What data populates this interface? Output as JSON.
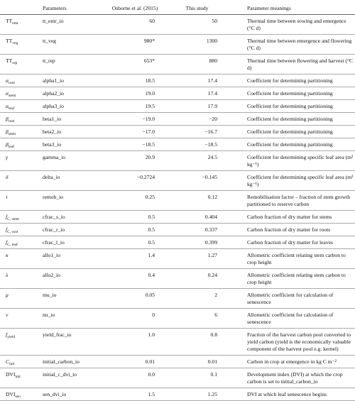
{
  "table": {
    "header": [
      "Parameters",
      "Osborne et al. (2015)",
      "This study",
      "Parameter meanings"
    ],
    "rows": [
      {
        "symbol": {
          "base": "TT",
          "sub": "emr"
        },
        "parameter": "tt_emr_io",
        "osborne": "60",
        "study": "50",
        "meaning": "Thermal time between sowing and emergence (°C d)"
      },
      {
        "symbol": {
          "base": "TT",
          "sub": "veg"
        },
        "parameter": "tt_veg",
        "osborne": "980*",
        "study": "1300",
        "meaning": "Thermal time between emergence and flowering (°C d)"
      },
      {
        "symbol": {
          "base": "TT",
          "sub": "rep"
        },
        "parameter": "tt_rep",
        "osborne": "653*",
        "study": "880",
        "meaning": "Thermal time between flowering and harvest (°C d)"
      },
      {
        "symbol": {
          "base": "α",
          "sub": "root"
        },
        "parameter": "alpha1_io",
        "osborne": "18.5",
        "study": "17.4",
        "meaning": "Coefficient for determining partitioning"
      },
      {
        "symbol": {
          "base": "α",
          "sub": "stem"
        },
        "parameter": "alpha2_io",
        "osborne": "19.0",
        "study": "17.4",
        "meaning": "Coefficient for determining partitioning"
      },
      {
        "symbol": {
          "base": "α",
          "sub": "leaf"
        },
        "parameter": "alpha3_io",
        "osborne": "19.5",
        "study": "17.9",
        "meaning": "Coefficient for determining partitioning"
      },
      {
        "symbol": {
          "base": "β",
          "sub": "root"
        },
        "parameter": "beta1_io",
        "osborne": "−19.0",
        "study": "−20",
        "meaning": "Coefficient for determining partitioning"
      },
      {
        "symbol": {
          "base": "β",
          "sub": "stem"
        },
        "parameter": "beta2_io",
        "osborne": "−17.0",
        "study": "−16.7",
        "meaning": "Coefficient for determining partitioning"
      },
      {
        "symbol": {
          "base": "β",
          "sub": "leaf"
        },
        "parameter": "beta3_io",
        "osborne": "−18.5",
        "study": "−18.5",
        "meaning": "Coefficient for determining partitioning"
      },
      {
        "symbol": {
          "base": "γ"
        },
        "parameter": "gamma_io",
        "osborne": "20.9",
        "study": "24.5",
        "meaning": "Coefficient for determining specific leaf area (m² kg⁻¹)"
      },
      {
        "symbol": {
          "base": "δ"
        },
        "parameter": "delta_io",
        "osborne": "−0.2724",
        "study": "−0.145",
        "meaning": "Coefficient for determining specific leaf area (m² kg⁻¹)"
      },
      {
        "symbol": {
          "base": "τ"
        },
        "parameter": "remob_io",
        "osborne": "0.25",
        "study": "0.12",
        "meaning": "Remobilisation factor – fraction of stem growth partitioned to reserve carbon"
      },
      {
        "symbol": {
          "base": "f",
          "sub": "C, stem"
        },
        "parameter": "cfrac_s_io",
        "osborne": "0.5",
        "study": "0.404",
        "meaning": "Carbon fraction of dry matter for stems"
      },
      {
        "symbol": {
          "base": "f",
          "sub": "C, root"
        },
        "parameter": "cfrac_r_io",
        "osborne": "0.5",
        "study": "0.337",
        "meaning": "Carbon fraction of dry matter for roots"
      },
      {
        "symbol": {
          "base": "f",
          "sub": "C, leaf"
        },
        "parameter": "cfrac_l_io",
        "osborne": "0.5",
        "study": "0.399",
        "meaning": "Carbon fraction of dry matter for leaves"
      },
      {
        "symbol": {
          "base": "κ"
        },
        "parameter": "allo1_io",
        "osborne": "1.4",
        "study": "1.27",
        "meaning": "Allometric coefficient relating stem carbon to crop height"
      },
      {
        "symbol": {
          "base": "λ"
        },
        "parameter": "allo2_io",
        "osborne": "0.4",
        "study": "0.24",
        "meaning": "Allometric coefficient relating stem carbon to crop height"
      },
      {
        "symbol": {
          "base": "μ"
        },
        "parameter": "mu_io",
        "osborne": "0.05",
        "study": "2",
        "meaning": "Allometric coefficient for calculation of senescence"
      },
      {
        "symbol": {
          "base": "ν"
        },
        "parameter": "nu_io",
        "osborne": "0",
        "study": "6",
        "meaning": "Allometric coefficient for calculation of senescence"
      },
      {
        "symbol": {
          "base": "f",
          "sub": "yield"
        },
        "parameter": "yield_frac_io",
        "osborne": "1.0",
        "study": "0.8",
        "meaning": "Fraction of the harvest carbon pool converted to yield carbon (yield is the economically valuable component of the harvest pool e.g. kernel)"
      },
      {
        "symbol": {
          "base": "C",
          "sub": "init"
        },
        "parameter": "initial_carbon_io",
        "osborne": "0.01",
        "study": "0.01",
        "meaning": "Carbon in crop at emergence in kg C m⁻²"
      },
      {
        "symbol": {
          "base": "DVI",
          "sub": "init"
        },
        "parameter": "initial_c_dvi_io",
        "osborne": "0.0",
        "study": "0.1",
        "meaning": "Development index (DVI) at which the crop carbon is set to initial_carbon_io"
      },
      {
        "symbol": {
          "base": "DVI",
          "sub": "sen"
        },
        "parameter": "sen_dvi_io",
        "osborne": "1.5",
        "study": "1.25",
        "meaning": "DVI at which leaf senescence begins"
      }
    ]
  }
}
